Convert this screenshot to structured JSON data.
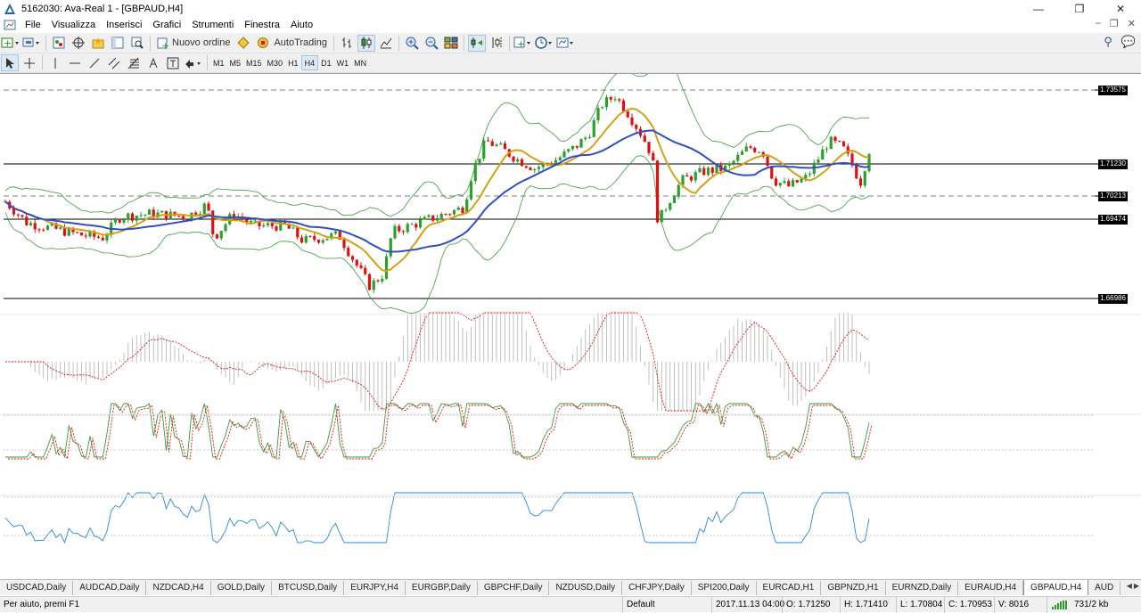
{
  "window": {
    "title": "5162030: Ava-Real 1 - [GBPAUD,H4]",
    "minimize_glyph": "—",
    "maximize_glyph": "❐",
    "close_glyph": "✕"
  },
  "menu": {
    "items": [
      "File",
      "Visualizza",
      "Inserisci",
      "Grafici",
      "Strumenti",
      "Finestra",
      "Aiuto"
    ],
    "mdi": [
      "–",
      "❐",
      "✕"
    ]
  },
  "toolbar": {
    "new_order_label": "Nuovo ordine",
    "autotrading_label": "AutoTrading",
    "timeframes": [
      "M1",
      "M5",
      "M15",
      "M30",
      "H1",
      "H4",
      "D1",
      "W1",
      "MN"
    ],
    "active_timeframe": "H4"
  },
  "chart": {
    "symbol": "GBPAUD,H4",
    "price_levels": [
      {
        "label": "1.73575",
        "style": "dashed"
      },
      {
        "label": "1.71230",
        "style": "solid"
      },
      {
        "label": "1.70213",
        "style": "dashed"
      },
      {
        "label": "1.69474",
        "style": "solid"
      },
      {
        "label": "1.66986",
        "style": "solid"
      }
    ],
    "colors": {
      "bull": "#2ca02c",
      "bear": "#e01010",
      "bollinger": "#3a9a3a",
      "ma_fast": "#d4a017",
      "ma_slow": "#2f4fbf",
      "macd_signal": "#e01010",
      "stoch_main": "#3a9a3a",
      "stoch_signal": "#e01010",
      "third_line": "#2a8ad4"
    }
  },
  "tabs": {
    "items": [
      "USDCAD,Daily",
      "AUDCAD,Daily",
      "NZDCAD,H4",
      "GOLD,Daily",
      "BTCUSD,Daily",
      "EURJPY,H4",
      "EURGBP,Daily",
      "GBPCHF,Daily",
      "NZDUSD,Daily",
      "CHFJPY,Daily",
      "SPI200,Daily",
      "EURCAD,H1",
      "GBPNZD,H1",
      "EURNZD,Daily",
      "EURAUD,H4",
      "GBPAUD,H4",
      "AUD"
    ],
    "active": "GBPAUD,H4"
  },
  "status": {
    "help": "Per aiuto, premi F1",
    "profile": "Default",
    "datetime": "2017.11.13 04:00",
    "open": "O: 1.71250",
    "high": "H: 1.71410",
    "low": "L: 1.70804",
    "close": "C: 1.70953",
    "volume": "V: 8016",
    "traffic": "731/2 kb"
  }
}
